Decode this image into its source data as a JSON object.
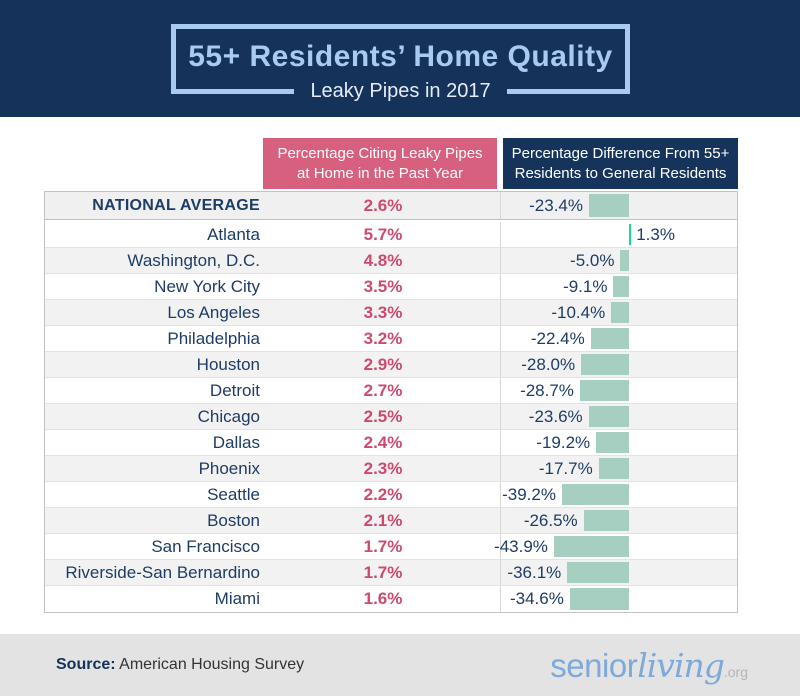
{
  "header": {
    "title": "55+ Residents’ Home Quality",
    "subtitle": "Leaky Pipes in 2017"
  },
  "chart_data": {
    "type": "bar",
    "title": "55+ Residents’ Home Quality",
    "subtitle": "Leaky Pipes in 2017",
    "categories": [
      "NATIONAL AVERAGE",
      "Atlanta",
      "Washington, D.C.",
      "New York City",
      "Los Angeles",
      "Philadelphia",
      "Houston",
      "Detroit",
      "Chicago",
      "Dallas",
      "Phoenix",
      "Seattle",
      "Boston",
      "San Francisco",
      "Riverside-San Bernardino",
      "Miami"
    ],
    "series": [
      {
        "name": "Percentage Citing Leaky Pipes at Home in the Past Year",
        "unit": "%",
        "values": [
          2.6,
          5.7,
          4.8,
          3.5,
          3.3,
          3.2,
          2.9,
          2.7,
          2.5,
          2.4,
          2.3,
          2.2,
          2.1,
          1.7,
          1.7,
          1.6
        ]
      },
      {
        "name": "Percentage Difference From 55+ Residents to General Residents",
        "unit": "%",
        "values": [
          -23.4,
          1.3,
          -5.0,
          -9.1,
          -10.4,
          -22.4,
          -28.0,
          -28.7,
          -23.6,
          -19.2,
          -17.7,
          -39.2,
          -26.5,
          -43.9,
          -36.1,
          -34.6
        ]
      }
    ],
    "layout": {
      "bar_direction": "horizontal",
      "baseline": 0,
      "negative_bars_extend_left": true,
      "legend": "none"
    },
    "colors": {
      "navy": "#14325a",
      "header_pink": "#d6607e",
      "value_pink": "#ce4a6d",
      "bar_teal": "#a6cfc1",
      "bar_positive_green": "#14db8d",
      "title_light_blue": "#a9cbf0",
      "row_gray": "#f2f2f2",
      "footer_gray": "#e3e3e3"
    }
  },
  "footer": {
    "source_label": "Source:",
    "source_text": "American Housing Survey",
    "logo_senior": "senior",
    "logo_living": "living",
    "logo_org": ".org"
  }
}
